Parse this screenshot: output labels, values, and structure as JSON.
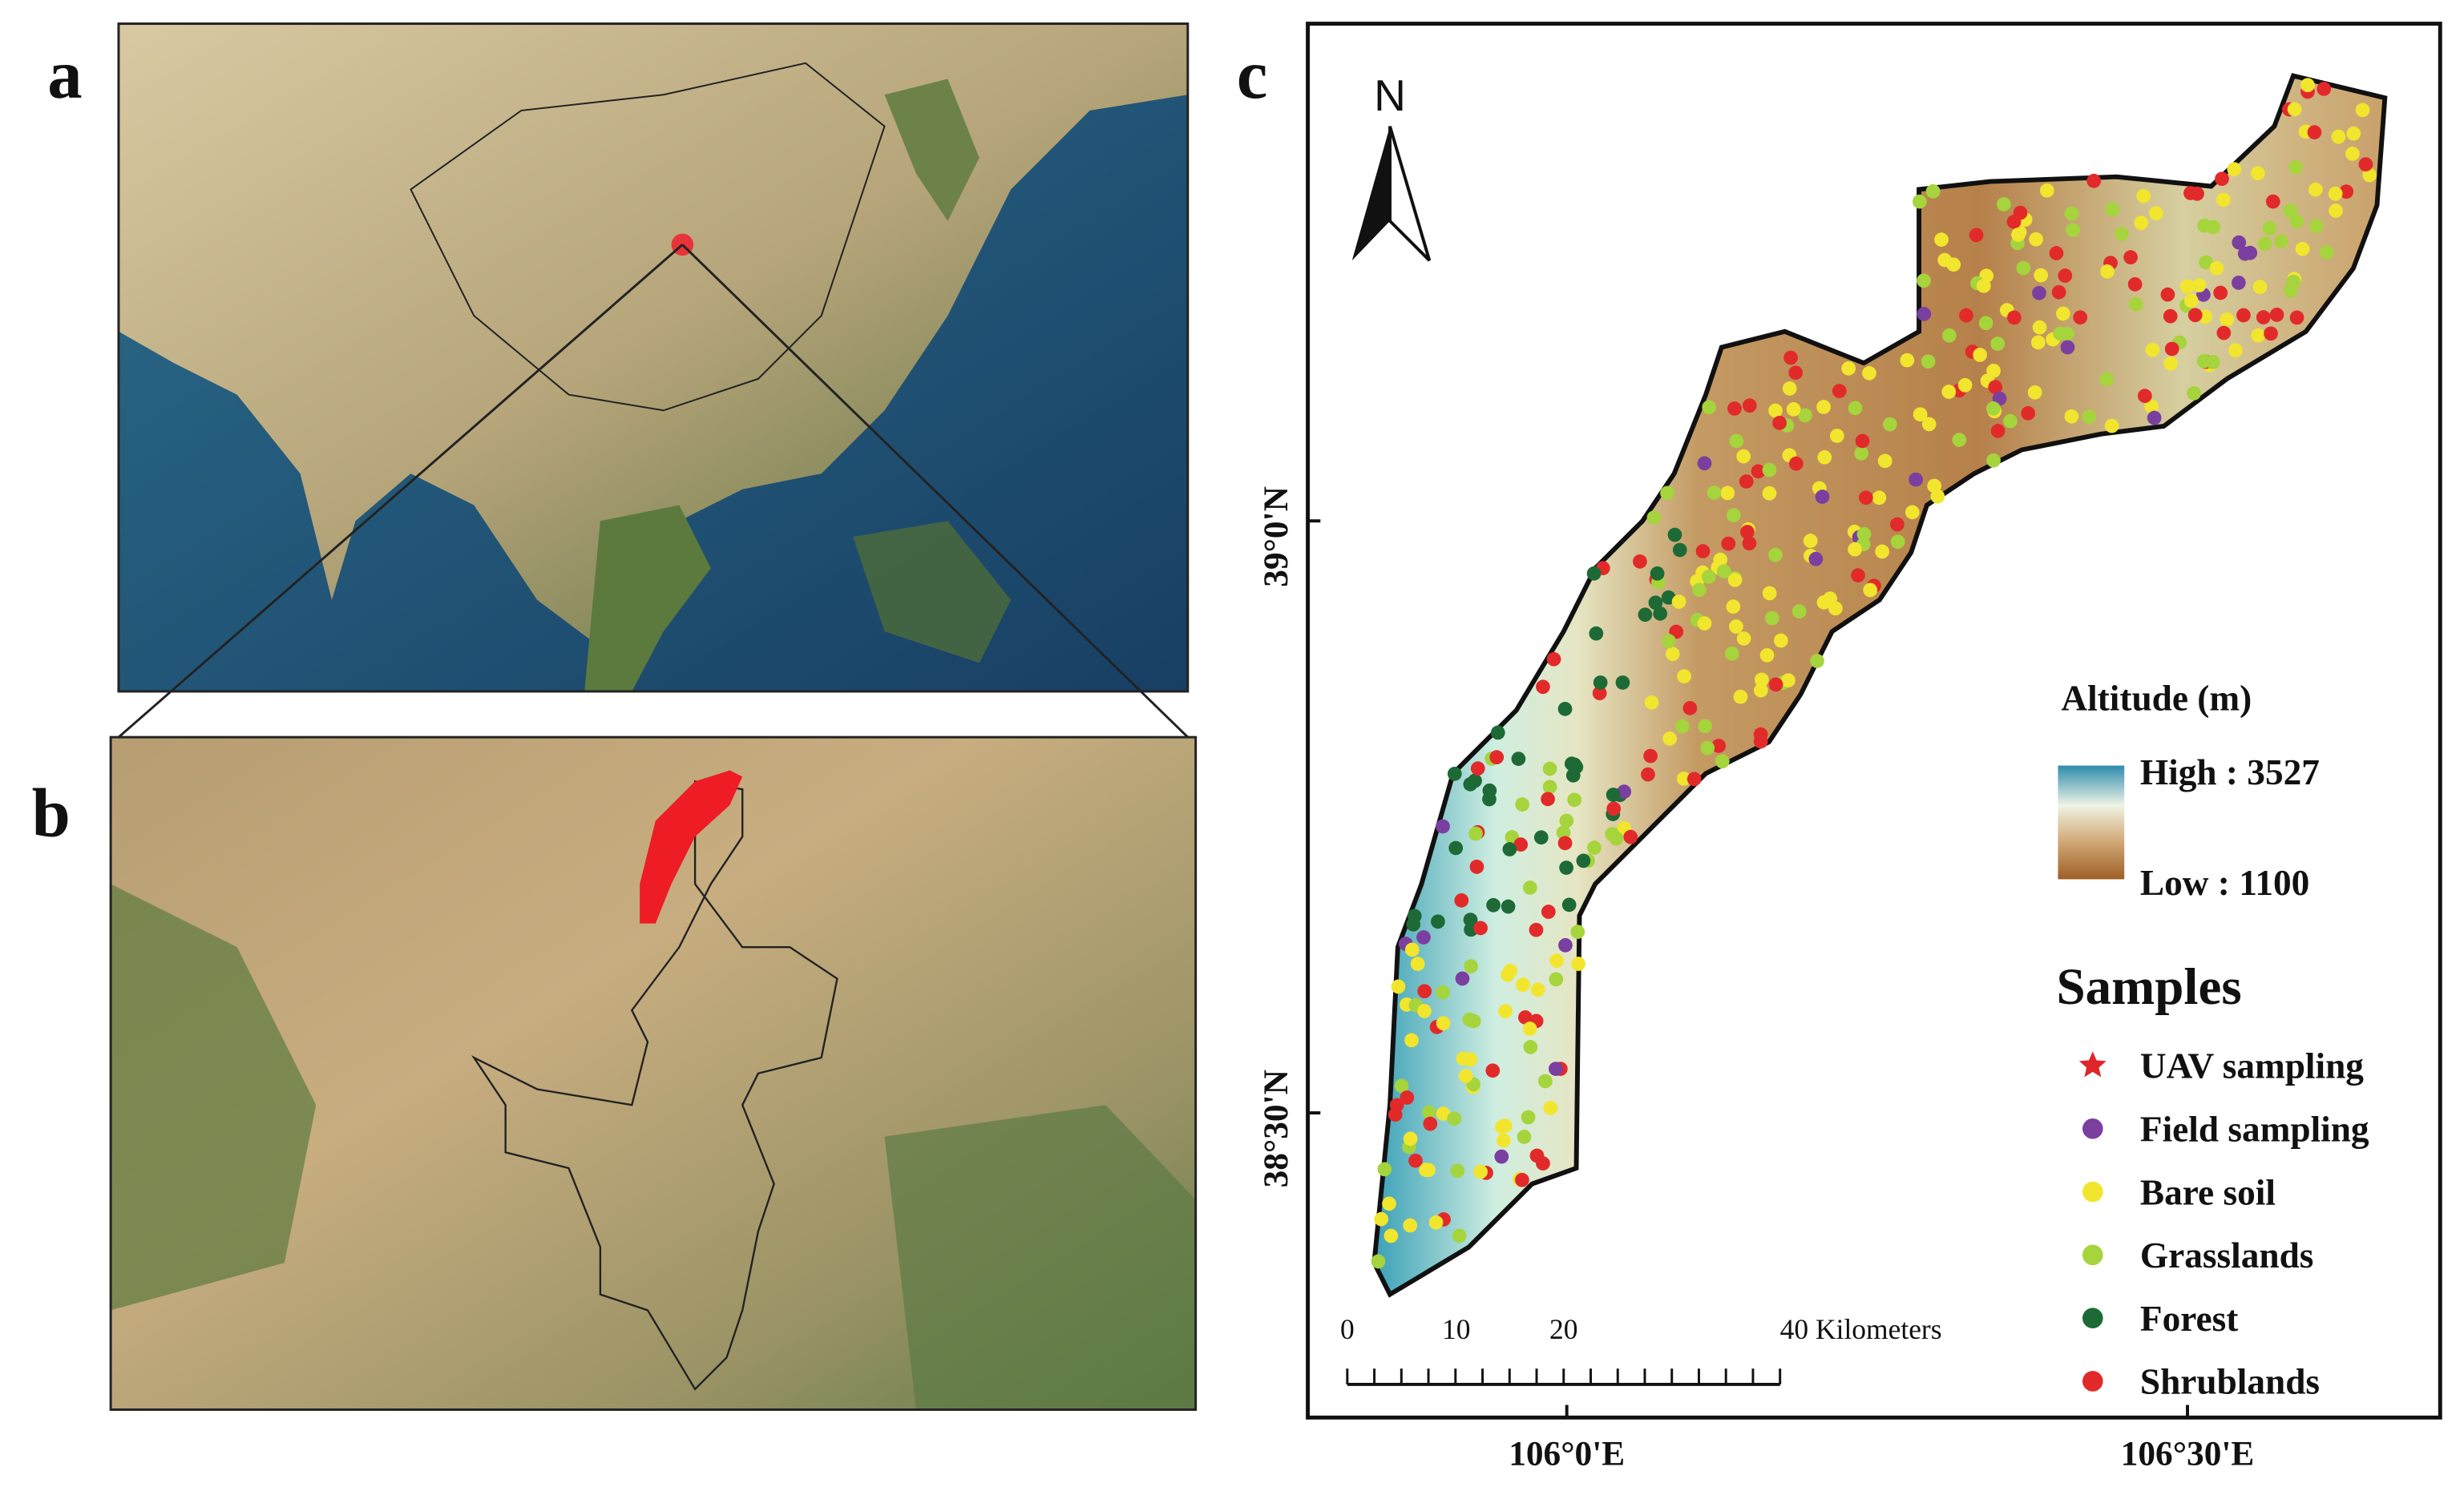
{
  "panels": {
    "a": {
      "label": "a"
    },
    "b": {
      "label": "b"
    },
    "c": {
      "label": "c",
      "north": "N",
      "lat_labels": [
        "39°0'N",
        "38°30'N"
      ],
      "lon_labels": [
        "106°0'E",
        "106°30'E"
      ],
      "legend": {
        "altitude_title": "Altitude (m)",
        "high": "High : 3527",
        "low": "Low : 1100",
        "samples_title": "Samples",
        "items": [
          {
            "label": "UAV sampling",
            "color": "#e0242b",
            "marker": "star"
          },
          {
            "label": "Field sampling",
            "color": "#7b3fa0",
            "marker": "dot"
          },
          {
            "label": "Bare soil",
            "color": "#f2e52e",
            "marker": "dot"
          },
          {
            "label": "Grasslands",
            "color": "#a5d43c",
            "marker": "dot"
          },
          {
            "label": "Forest",
            "color": "#1d6a36",
            "marker": "dot"
          },
          {
            "label": "Shrublands",
            "color": "#e22a2a",
            "marker": "dot"
          }
        ]
      },
      "scale_bar": {
        "labels": [
          "0",
          "10",
          "20",
          "40 Kilometers"
        ]
      }
    }
  }
}
